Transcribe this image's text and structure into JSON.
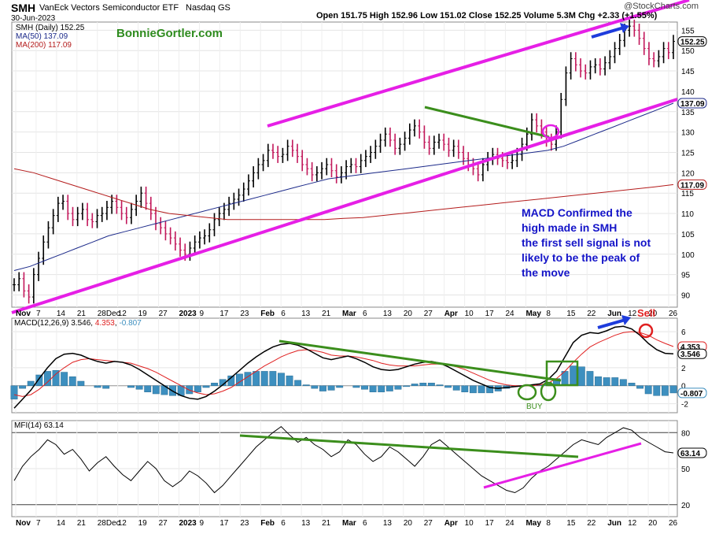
{
  "header": {
    "symbol": "SMH",
    "name": "VanEck Vectors Semiconductor ETF",
    "exchange": "Nasdaq GS",
    "date": "30-Jun-2023",
    "quote_line": "Open 151.75  High 152.96  Low 151.02  Close 152.25  Volume 5.3M  Chg +2.33 (+1.55%)",
    "watermark": "@StockCharts.com"
  },
  "price_legend": {
    "main": "SMH (Daily) 152.25",
    "ma50": "MA(50) 137.09",
    "ma200": "MA(200) 117.09"
  },
  "annotation_site": "BonnieGortler.com",
  "annotation_note": "MACD Confirmed the\nhigh made in SMH\nthe first sell signal is not\nlikely to be the peak of\nthe move",
  "macd_legend": {
    "label": "MACD(12,26,9)",
    "macd": "3.546",
    "signal": "4.353",
    "hist": "-0.807"
  },
  "mfi_legend": "MFI(14) 63.14",
  "buy_label": "BUY",
  "sell_label": "Sell",
  "colors": {
    "price_up": "#000000",
    "price_down": "#c2185b",
    "ma50": "#1c2a8a",
    "ma200": "#b41c1c",
    "channel": "#e61fe6",
    "trend": "#3b8e1c",
    "arrow": "#1e3cdc",
    "macd_line": "#000000",
    "signal_line": "#e02020",
    "hist": "#3d8fbf",
    "sell_circle": "#e02020",
    "buy_circle": "#3b8e1c"
  },
  "x_ticks": [
    "Nov",
    "7",
    "14",
    "21",
    "28Dec",
    "12",
    "19",
    "27",
    "2023",
    "9",
    "17",
    "23",
    "Feb",
    "6",
    "13",
    "21",
    "Mar",
    "6",
    "13",
    "20",
    "27",
    "Apr",
    "10",
    "17",
    "24",
    "May",
    "8",
    "15",
    "22",
    "Jun",
    "12",
    "20",
    "26"
  ],
  "chart_data": [
    {
      "type": "line",
      "panel": "price",
      "title": "SMH (Daily)",
      "ylim": [
        87,
        157
      ],
      "y_ticks": [
        90,
        95,
        100,
        105,
        110,
        115,
        120,
        125,
        130,
        135,
        140,
        145,
        150,
        155
      ],
      "last_values": [
        "152.25",
        "137.09",
        "117.09"
      ],
      "series": [
        {
          "name": "SMH (Daily)",
          "values": [
            92.5,
            94.0,
            91.0,
            89.5,
            95.0,
            99.0,
            103.0,
            106.5,
            109.5,
            112.5,
            113.0,
            110.0,
            108.5,
            110.0,
            111.0,
            108.5,
            108.0,
            109.5,
            110.0,
            111.5,
            113.0,
            111.5,
            110.0,
            109.0,
            111.0,
            113.0,
            115.0,
            112.5,
            110.0,
            107.5,
            106.5,
            105.0,
            104.0,
            102.5,
            101.0,
            100.0,
            101.5,
            103.0,
            104.0,
            104.5,
            106.0,
            108.5,
            110.0,
            111.0,
            112.5,
            113.5,
            114.5,
            116.0,
            118.0,
            120.0,
            122.0,
            123.0,
            125.5,
            125.0,
            124.0,
            124.5,
            126.5,
            125.5,
            124.0,
            122.0,
            121.0,
            119.5,
            120.0,
            121.0,
            122.0,
            120.5,
            119.0,
            120.0,
            121.5,
            122.0,
            121.5,
            123.0,
            124.0,
            125.0,
            126.5,
            128.0,
            129.5,
            128.0,
            126.0,
            127.0,
            128.5,
            130.5,
            131.5,
            130.0,
            127.5,
            126.0,
            127.5,
            128.0,
            127.0,
            125.5,
            126.5,
            125.0,
            123.5,
            122.0,
            121.0,
            119.5,
            122.0,
            123.5,
            124.5,
            123.5,
            123.0,
            122.5,
            123.0,
            124.5,
            127.0,
            129.5,
            133.0,
            131.5,
            130.0,
            128.0,
            127.0,
            130.0,
            138.0,
            144.5,
            148.0,
            146.5,
            145.0,
            144.5,
            146.0,
            146.5,
            145.5,
            147.0,
            148.5,
            150.5,
            152.5,
            155.0,
            156.0,
            155.0,
            153.0,
            150.5,
            148.0,
            147.5,
            148.5,
            150.5,
            149.5,
            152.25
          ]
        },
        {
          "name": "MA(50)",
          "values": [
            96.0,
            97.0,
            98.5,
            100.0,
            101.5,
            103.0,
            104.5,
            105.5,
            106.5,
            107.5,
            108.5,
            109.5,
            110.5,
            111.5,
            112.5,
            113.5,
            114.5,
            115.5,
            116.5,
            117.5,
            118.5,
            119.0,
            119.5,
            120.0,
            120.5,
            121.0,
            121.5,
            122.0,
            122.5,
            123.0,
            123.5,
            124.0,
            124.5,
            125.0,
            125.5,
            126.5,
            128.0,
            129.5,
            131.0,
            132.5,
            134.0,
            135.5,
            137.09
          ]
        },
        {
          "name": "MA(200)",
          "values": [
            121.0,
            120.0,
            118.5,
            117.0,
            115.5,
            114.0,
            112.5,
            111.0,
            110.0,
            109.5,
            109.0,
            108.5,
            108.5,
            108.5,
            108.5,
            108.5,
            108.5,
            108.8,
            109.0,
            109.5,
            110.0,
            110.5,
            111.0,
            111.5,
            112.0,
            112.5,
            113.0,
            113.5,
            114.0,
            114.5,
            115.0,
            115.5,
            116.0,
            116.5,
            117.09
          ]
        }
      ]
    },
    {
      "type": "bar",
      "panel": "macd",
      "title": "MACD(12,26,9)",
      "ylim": [
        -3,
        7.5
      ],
      "y_ticks": [
        -2,
        0,
        2,
        4,
        6
      ],
      "last_values": [
        "4.353",
        "3.546",
        "-0.807"
      ],
      "series": [
        {
          "name": "MACD",
          "values": [
            -2.5,
            -1.5,
            -0.5,
            0.8,
            2.0,
            3.0,
            3.5,
            3.6,
            3.4,
            3.0,
            2.7,
            2.5,
            2.7,
            2.6,
            2.3,
            1.8,
            1.2,
            0.6,
            0.0,
            -0.6,
            -1.1,
            -1.4,
            -1.5,
            -1.2,
            -0.6,
            0.1,
            0.9,
            1.7,
            2.5,
            3.2,
            3.8,
            4.3,
            4.6,
            4.7,
            4.5,
            4.1,
            3.6,
            3.1,
            2.9,
            3.1,
            3.3,
            3.0,
            2.6,
            2.1,
            1.8,
            1.7,
            1.8,
            2.1,
            2.4,
            2.6,
            2.7,
            2.5,
            2.1,
            1.6,
            1.1,
            0.6,
            0.2,
            -0.2,
            -0.3,
            -0.2,
            -0.1,
            0.0,
            0.1,
            0.2,
            0.7,
            1.6,
            3.2,
            4.8,
            5.6,
            5.9,
            5.8,
            6.1,
            6.5,
            6.6,
            6.3,
            5.6,
            4.7,
            4.0,
            3.6,
            3.546
          ]
        },
        {
          "name": "Signal",
          "values": [
            -1.0,
            -1.2,
            -1.0,
            -0.4,
            0.4,
            1.3,
            2.0,
            2.6,
            2.9,
            3.0,
            2.9,
            2.8,
            2.7,
            2.6,
            2.5,
            2.2,
            1.9,
            1.5,
            1.0,
            0.5,
            0.0,
            -0.5,
            -0.8,
            -1.0,
            -0.9,
            -0.6,
            -0.2,
            0.4,
            1.0,
            1.6,
            2.2,
            2.7,
            3.2,
            3.6,
            3.9,
            4.0,
            3.9,
            3.7,
            3.4,
            3.3,
            3.3,
            3.2,
            3.0,
            2.8,
            2.5,
            2.3,
            2.2,
            2.2,
            2.2,
            2.3,
            2.4,
            2.4,
            2.3,
            2.1,
            1.8,
            1.4,
            1.0,
            0.6,
            0.3,
            0.1,
            0.0,
            0.0,
            0.0,
            0.1,
            0.3,
            0.8,
            1.6,
            2.6,
            3.5,
            4.3,
            4.8,
            5.2,
            5.6,
            5.9,
            6.0,
            5.9,
            5.6,
            5.1,
            4.7,
            4.353
          ]
        },
        {
          "name": "Histogram",
          "values": [
            -1.5,
            -0.3,
            0.5,
            1.2,
            1.6,
            1.7,
            1.5,
            1.0,
            0.5,
            0.0,
            -0.2,
            -0.3,
            0.0,
            0.0,
            -0.2,
            -0.4,
            -0.7,
            -0.9,
            -1.0,
            -1.1,
            -1.1,
            -0.9,
            -0.7,
            -0.2,
            0.3,
            0.7,
            1.1,
            1.3,
            1.5,
            1.6,
            1.6,
            1.6,
            1.4,
            1.1,
            0.6,
            0.1,
            -0.3,
            -0.6,
            -0.5,
            -0.2,
            0.0,
            -0.2,
            -0.4,
            -0.7,
            -0.7,
            -0.6,
            -0.4,
            -0.1,
            0.2,
            0.3,
            0.3,
            0.1,
            -0.2,
            -0.5,
            -0.7,
            -0.8,
            -0.8,
            -0.8,
            -0.6,
            -0.3,
            -0.1,
            0.0,
            0.1,
            0.1,
            0.4,
            0.8,
            1.6,
            2.2,
            2.1,
            1.6,
            1.0,
            0.9,
            0.9,
            0.7,
            0.3,
            -0.3,
            -0.9,
            -1.1,
            -1.1,
            -0.807
          ]
        }
      ]
    },
    {
      "type": "line",
      "panel": "mfi",
      "title": "MFI(14)",
      "ylim": [
        10,
        90
      ],
      "y_ticks": [
        20,
        50,
        80
      ],
      "last_values": [
        "63.14"
      ],
      "series": [
        {
          "name": "MFI(14)",
          "values": [
            40,
            52,
            60,
            66,
            74,
            70,
            62,
            66,
            58,
            48,
            55,
            60,
            52,
            45,
            40,
            48,
            56,
            50,
            40,
            35,
            40,
            48,
            44,
            38,
            30,
            36,
            44,
            52,
            60,
            68,
            74,
            80,
            85,
            78,
            72,
            76,
            70,
            66,
            60,
            64,
            74,
            70,
            62,
            56,
            60,
            68,
            64,
            58,
            52,
            60,
            70,
            74,
            68,
            62,
            56,
            50,
            44,
            40,
            36,
            32,
            30,
            34,
            42,
            48,
            52,
            58,
            64,
            70,
            74,
            72,
            70,
            76,
            80,
            84,
            82,
            76,
            72,
            68,
            64,
            63.14
          ]
        }
      ]
    }
  ]
}
